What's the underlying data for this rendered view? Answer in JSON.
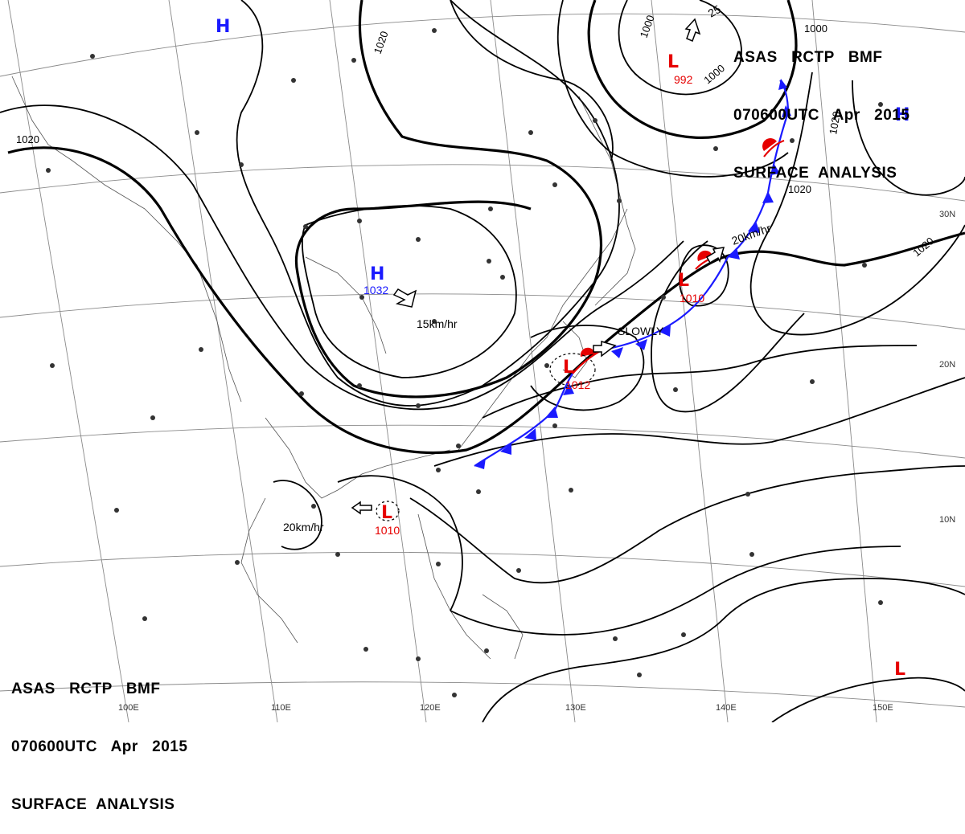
{
  "header": {
    "product_line": "ASAS   RCTP   BMF",
    "time_line": "070600UTC   Apr   2015",
    "type_line": "SURFACE  ANALYSIS"
  },
  "footer": {
    "product_line": "ASAS   RCTP   BMF",
    "time_line": "070600UTC   Apr   2015",
    "type_line": "SURFACE  ANALYSIS"
  },
  "longitude_labels": [
    "100E",
    "110E",
    "120E",
    "130E",
    "140E",
    "150E"
  ],
  "latitude_labels": [
    "30N",
    "20N",
    "10N"
  ],
  "isobar_labels": [
    "1020",
    "1020",
    "1020",
    "1020",
    "1000",
    "1000",
    "1000",
    "1020"
  ],
  "systems": [
    {
      "kind": "H",
      "color": "#1a1aff",
      "pressure": ""
    },
    {
      "kind": "H",
      "color": "#1a1aff",
      "pressure": "1032"
    },
    {
      "kind": "H",
      "color": "#1a1aff",
      "pressure": ""
    },
    {
      "kind": "L",
      "color": "#e60000",
      "pressure": "992"
    },
    {
      "kind": "L",
      "color": "#e60000",
      "pressure": "1010"
    },
    {
      "kind": "L",
      "color": "#e60000",
      "pressure": "1012"
    },
    {
      "kind": "L",
      "color": "#e60000",
      "pressure": "1010"
    },
    {
      "kind": "L",
      "color": "#e60000",
      "pressure": ""
    }
  ],
  "motion_labels": [
    "15km/hr",
    "20km/hr",
    "SLOWLY",
    "20km/hr",
    "25"
  ],
  "colors": {
    "high": "#1a1aff",
    "low": "#e60000",
    "cold_front": "#1a1aff",
    "warm_front": "#e60000"
  }
}
